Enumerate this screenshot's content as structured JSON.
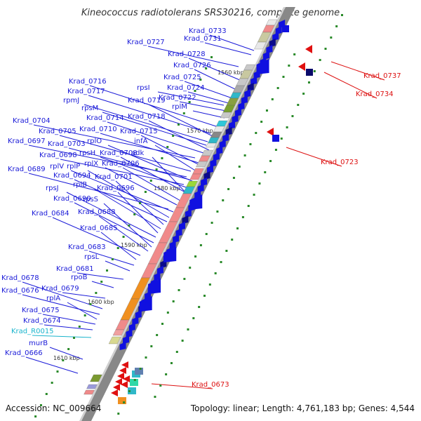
{
  "header": {
    "title": "Kineococcus radiotolerans SRS30216, complete genome"
  },
  "footer": {
    "accession": "Accession: NC_009664",
    "topology": "Topology: linear; Length: 4,761,183 bp; Genes: 4,544"
  },
  "ruler": {
    "ticks": [
      "1560 kbp",
      "1570 kbp",
      "1580 kbp",
      "1590 kbp",
      "1600 kbp",
      "1610 kbp"
    ]
  },
  "colors": {
    "forward_gene": "#1010e0",
    "reverse_gene": "#e01010",
    "rna": "#22b8c8",
    "rrna_block": "#f08a8a",
    "label_link": "#1010c0",
    "strand_line": "#888888",
    "dot_marker": "#2a8a2a"
  },
  "labels": {
    "forward": [
      "Krad_0733",
      "Krad_0731",
      "Krad_0727",
      "Krad_0728",
      "Krad_0726",
      "Krad_0725",
      "Krad_0724",
      "rpsI",
      "Krad_0722",
      "Krad_0716",
      "rplM",
      "Krad_0717",
      "Krad_0719",
      "rpmJ",
      "rpsM",
      "Krad_0718",
      "Krad_0714",
      "Krad_0704",
      "Krad_0710",
      "Krad_0715",
      "Krad_0705",
      "Krad_0697",
      "Krad_0703",
      "infA",
      "rplO",
      "Krad_0698",
      "rpsH",
      "Krad_0708",
      "adk",
      "Krad_0706",
      "rplX",
      "Krad_0689",
      "rplV",
      "rplP",
      "Krad_0694",
      "Krad_0701",
      "rplB",
      "Krad_0696",
      "rpsJ",
      "Krad_0690",
      "rpsS",
      "Krad_0688",
      "Krad_0684",
      "Krad_0685",
      "Krad_0683",
      "rpsL",
      "Krad_0681",
      "Krad_0678",
      "rpoB",
      "Krad_0676",
      "Krad_0679",
      "rplA",
      "Krad_0675",
      "Krad_0674",
      "murB",
      "Krad_0666"
    ],
    "rna": [
      "Krad_R0015"
    ],
    "reverse": [
      "Krad_0737",
      "Krad_0734",
      "Krad_0723",
      "Krad_0673"
    ]
  }
}
